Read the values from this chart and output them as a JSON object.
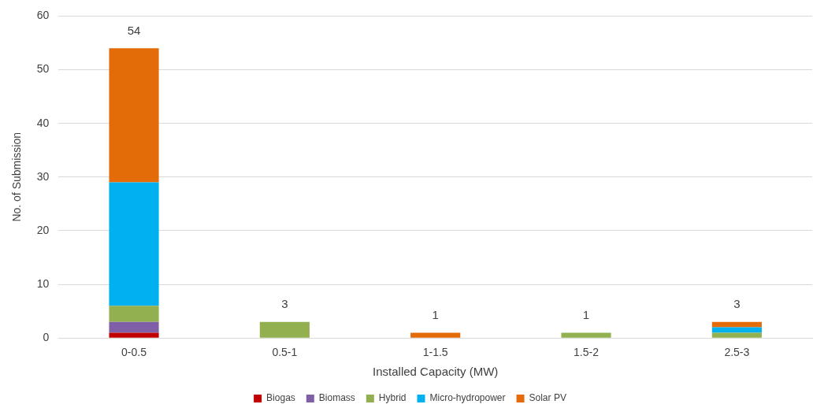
{
  "chart_data": {
    "type": "bar",
    "stacked": true,
    "xlabel": "Installed Capacity (MW)",
    "ylabel": "No. of Submission",
    "categories": [
      "0-0.5",
      "0.5-1",
      "1-1.5",
      "1.5-2",
      "2.5-3"
    ],
    "series": [
      {
        "name": "Biogas",
        "color": "#c00000",
        "values": [
          1,
          0,
          0,
          0,
          0
        ]
      },
      {
        "name": "Biomass",
        "color": "#7f5fa8",
        "values": [
          2,
          0,
          0,
          0,
          0
        ]
      },
      {
        "name": "Hybrid",
        "color": "#92b050",
        "values": [
          3,
          3,
          0,
          1,
          1
        ]
      },
      {
        "name": "Micro-hydropower",
        "color": "#00b0f0",
        "values": [
          23,
          0,
          0,
          0,
          1
        ]
      },
      {
        "name": "Solar PV",
        "color": "#e36c09",
        "values": [
          25,
          0,
          1,
          0,
          1
        ]
      }
    ],
    "totals": [
      "54",
      "3",
      "1",
      "1",
      "3"
    ],
    "ylim": [
      0,
      60
    ],
    "yticks": [
      0,
      10,
      20,
      30,
      40,
      50,
      60
    ],
    "grid": "y",
    "legend": "bottom"
  }
}
